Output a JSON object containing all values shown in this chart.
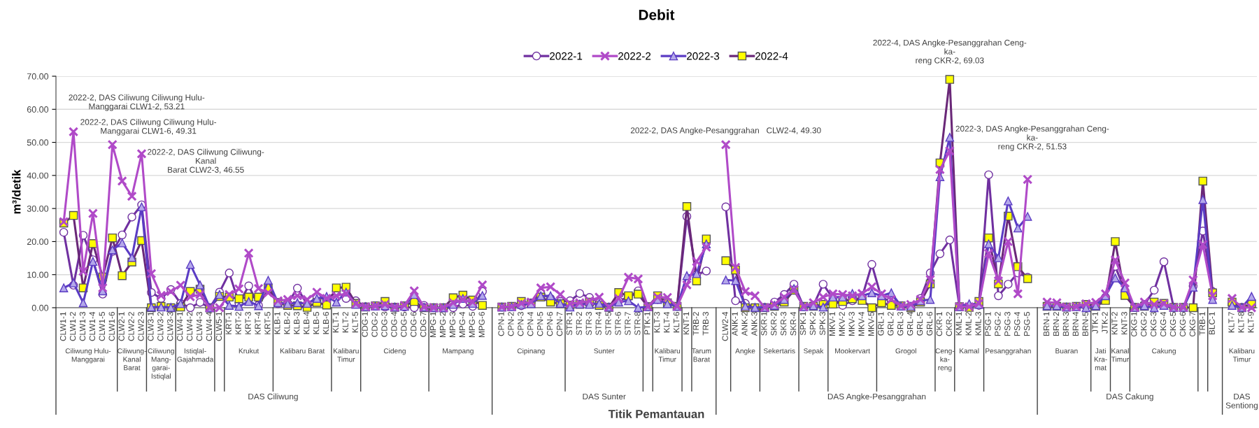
{
  "chart_data": {
    "type": "line",
    "title": "Debit",
    "ylabel": "m³/detik",
    "categories": [
      "CLW1-1",
      "CLW1-2",
      "CLW1-3",
      "CLW1-4",
      "CLW1-5",
      "CLW1-6",
      "CLW2-1",
      "CLW2-2",
      "CLW2-3",
      "CLW3-1",
      "CLW3-2",
      "CLW3-3",
      "CLW4-1",
      "CLW4-2",
      "CLW4-3",
      "CLW4-4",
      "CLW5-1",
      "KRT-1",
      "KRT-2",
      "KRT-3",
      "KRT-4",
      "KRT-5",
      "KLB-1",
      "KLB-2",
      "KLB-3",
      "KLB-4",
      "KLB-5",
      "KLB-6",
      "KLT-1",
      "KLT-2",
      "KLT-5",
      "CDG-1",
      "CDG-2",
      "CDG-3",
      "CDG-4",
      "CDG-5",
      "CDG-6",
      "CDG-7",
      "MPG-1",
      "MPG-2",
      "MPG-3",
      "MPG-4",
      "MPG-5",
      "MPG-6",
      null,
      "CPN-1",
      "CPN-2",
      "CPN-3",
      "CPN-4",
      "CPN-5",
      "CPN-6",
      "CPN-7",
      "STR-1",
      "STR-2",
      "STR-3",
      "STR-4",
      "STR-5",
      "STR-6",
      "STR-7",
      "STR-8",
      "PTK-1",
      "KLT-3",
      "KLT-4",
      "KLT-6",
      "KNT-1",
      "TRB-2",
      "TRB-3",
      null,
      "CLW2-4",
      "ANK-1",
      "ANK-2",
      "ANK-3",
      "SKR-1",
      "SKR-2",
      "SKR-3",
      "SKR-4",
      "SPK-1",
      "SPK-2",
      "SPK-3",
      "MKV-1",
      "MKV-2",
      "MKV-3",
      "MKV-4",
      "MKV-5",
      "GRL-1",
      "GRL-2",
      "GRL-3",
      "GRL-4",
      "GRL-5",
      "GRL-6",
      "CKR-1",
      "CKR-2",
      "KML-1",
      "KML-2",
      "KML-3",
      "PSG-1",
      "PSG-2",
      "PSG-3",
      "PSG-4",
      "PSG-5",
      null,
      "BRN-1",
      "BRN-2",
      "BRN-3",
      "BRN-4",
      "BRN-5",
      "JTK-1",
      "JTK-2",
      "KNT-2",
      "KNT-3",
      "CKG-1",
      "CKG-2",
      "CKG-3",
      "CKG-4",
      "CKG-5",
      "CKG-6",
      "CKG-7",
      "TRB-1",
      "BLC-1",
      null,
      "KLT-7",
      "KLT-8",
      "KLT-9"
    ],
    "series": [
      {
        "name": "2022-1",
        "color": "#7030a0",
        "marker": "circle",
        "values": [
          22.8,
          6.8,
          21.9,
          14.5,
          4.1,
          17.0,
          22.0,
          27.4,
          31.1,
          4.6,
          2.8,
          5.5,
          1.3,
          0.0,
          1.6,
          0.0,
          4.7,
          10.5,
          1.3,
          6.6,
          0.7,
          5.5,
          1.2,
          1.3,
          5.9,
          1.0,
          3.2,
          2.5,
          4.9,
          2.8,
          2.1,
          0.3,
          0.5,
          0.2,
          0.2,
          0.2,
          0.0,
          0.7,
          0.0,
          0.0,
          0.0,
          1.1,
          0.4,
          4.9,
          null,
          0.2,
          0.3,
          0.6,
          1.5,
          4.3,
          2.8,
          1.9,
          2.1,
          4.3,
          3.1,
          1.7,
          0.2,
          2.1,
          3.2,
          5.1,
          0.3,
          2.5,
          1.3,
          0.4,
          27.6,
          10.0,
          11.1,
          null,
          30.5,
          2.1,
          1.3,
          0.0,
          0.1,
          1.7,
          4.0,
          7.1,
          0.3,
          0.7,
          7.1,
          2.8,
          0.7,
          2.1,
          3.2,
          13.1,
          2.8,
          2.1,
          0.5,
          0.4,
          2.8,
          10.5,
          16.3,
          20.5,
          0.3,
          0.3,
          0.7,
          40.2,
          3.6,
          7.1,
          10.5,
          9.2,
          null,
          0.7,
          0.6,
          0.2,
          0.3,
          0.6,
          0.7,
          3.2,
          12.5,
          5.1,
          0.1,
          1.0,
          5.3,
          13.9,
          0.1,
          0.1,
          6.5,
          23.2,
          4.9,
          null,
          1.0,
          0.1,
          0.7
        ]
      },
      {
        "name": "2022-2",
        "color": "#b04ac8",
        "marker": "cross",
        "values": [
          26.0,
          53.21,
          11.0,
          28.5,
          6.0,
          49.31,
          38.3,
          33.7,
          46.55,
          10.3,
          3.7,
          4.9,
          6.8,
          3.3,
          4.0,
          0.0,
          0.0,
          4.0,
          5.7,
          16.5,
          5.8,
          4.5,
          2.1,
          2.5,
          3.6,
          2.5,
          4.7,
          2.8,
          3.6,
          4.3,
          1.2,
          0.3,
          0.5,
          1.0,
          0.2,
          0.7,
          5.1,
          0.2,
          0.0,
          0.0,
          1.5,
          2.5,
          1.7,
          6.9,
          null,
          0.2,
          0.3,
          1.3,
          1.7,
          6.0,
          6.3,
          4.0,
          1.3,
          1.5,
          2.1,
          3.2,
          0.2,
          2.8,
          9.2,
          8.7,
          0.3,
          3.2,
          3.1,
          0.4,
          6.9,
          14.0,
          18.3,
          null,
          49.3,
          12.2,
          4.9,
          3.6,
          0.1,
          1.0,
          3.2,
          5.5,
          0.3,
          1.5,
          3.2,
          4.2,
          4.0,
          3.6,
          4.3,
          6.3,
          4.2,
          2.5,
          0.5,
          1.0,
          2.5,
          8.5,
          41.8,
          47.4,
          0.3,
          0.3,
          1.3,
          16.4,
          8.1,
          20.0,
          4.2,
          38.8,
          null,
          1.7,
          1.5,
          0.2,
          0.3,
          1.2,
          1.6,
          4.2,
          14.4,
          7.5,
          0.1,
          1.7,
          1.0,
          1.2,
          0.1,
          0.1,
          8.4,
          19.1,
          3.6,
          null,
          2.8,
          0.1,
          0.0
        ]
      },
      {
        "name": "2022-3",
        "color": "#5b3cc4",
        "marker": "triangle",
        "values": [
          6.0,
          7.5,
          1.5,
          14.0,
          5.1,
          17.5,
          19.6,
          15.2,
          30.5,
          0.2,
          0.2,
          0.1,
          1.2,
          13.1,
          6.9,
          0.0,
          4.0,
          0.7,
          0.4,
          1.9,
          0.6,
          8.3,
          1.5,
          1.2,
          1.5,
          1.3,
          2.8,
          3.4,
          1.7,
          4.7,
          1.0,
          0.3,
          0.5,
          0.6,
          0.2,
          0.4,
          4.0,
          0.2,
          0.0,
          0.0,
          1.0,
          2.8,
          1.3,
          3.7,
          null,
          0.2,
          0.3,
          1.0,
          1.2,
          3.6,
          3.6,
          1.3,
          0.2,
          1.1,
          1.0,
          1.3,
          0.2,
          1.7,
          2.1,
          0.0,
          0.3,
          2.5,
          1.2,
          0.4,
          9.7,
          10.3,
          19.3,
          null,
          8.4,
          8.2,
          0.4,
          0.1,
          0.1,
          0.7,
          2.5,
          5.8,
          0.3,
          0.6,
          0.2,
          3.2,
          3.2,
          4.3,
          3.6,
          4.5,
          3.6,
          4.5,
          0.5,
          0.4,
          2.1,
          2.5,
          39.6,
          51.53,
          0.3,
          1.2,
          1.0,
          19.3,
          15.1,
          32.3,
          24.1,
          27.6,
          null,
          0.6,
          0.6,
          0.2,
          0.3,
          0.0,
          0.6,
          3.6,
          9.0,
          6.0,
          0.1,
          0.6,
          0.0,
          0.7,
          0.1,
          0.1,
          6.2,
          32.7,
          2.5,
          null,
          0.7,
          0.1,
          3.4
        ]
      },
      {
        "name": "2022-4",
        "color": "#6a2878",
        "marker": "square",
        "values": [
          25.6,
          27.9,
          6.0,
          19.4,
          9.3,
          21.1,
          9.7,
          13.8,
          20.3,
          0.0,
          0.4,
          0.0,
          0.2,
          4.9,
          5.6,
          0.0,
          3.4,
          3.2,
          2.7,
          3.2,
          3.2,
          6.0,
          1.6,
          0.7,
          0.6,
          0.1,
          1.6,
          0.8,
          6.0,
          6.2,
          1.3,
          0.2,
          0.6,
          1.9,
          0.1,
          0.6,
          1.9,
          0.0,
          0.0,
          0.0,
          3.0,
          3.8,
          2.3,
          0.7,
          null,
          0.2,
          0.4,
          1.9,
          1.3,
          3.2,
          1.7,
          1.2,
          0.8,
          1.0,
          1.7,
          0.7,
          0.1,
          4.6,
          3.6,
          4.1,
          0.3,
          3.6,
          1.5,
          0.4,
          30.6,
          8.1,
          20.8,
          null,
          14.2,
          11.4,
          0.0,
          0.0,
          0.0,
          0.4,
          1.7,
          5.3,
          0.4,
          0.4,
          1.0,
          1.1,
          1.9,
          2.7,
          2.2,
          0.0,
          1.5,
          0.7,
          0.6,
          0.0,
          1.7,
          7.2,
          43.8,
          69.03,
          0.3,
          0.1,
          1.9,
          21.1,
          7.2,
          27.7,
          12.4,
          8.8,
          null,
          0.4,
          0.4,
          0.2,
          0.4,
          1.0,
          0.4,
          2.2,
          20.0,
          3.7,
          0.1,
          0.4,
          1.7,
          1.3,
          0.1,
          0.1,
          0.0,
          38.3,
          4.5,
          null,
          1.7,
          0.0,
          1.2
        ]
      }
    ],
    "ylim": [
      0,
      70
    ],
    "yticks": [
      {
        "value": 0,
        "label": "0.00"
      },
      {
        "value": 10,
        "label": "10.00"
      },
      {
        "value": 20,
        "label": "20.00"
      },
      {
        "value": 30,
        "label": "30.00"
      },
      {
        "value": 40,
        "label": "40.00"
      },
      {
        "value": 50,
        "label": "50.00"
      },
      {
        "value": 60,
        "label": "60.00"
      },
      {
        "value": 70,
        "label": "70.00"
      }
    ],
    "grid": "y",
    "legend": "top",
    "line_style": "solid",
    "annotations": [
      {
        "text": "2022-2, DAS Ciliwung Ciliwung Hulu-\nManggarai CLW1-2, 53.21",
        "x": "CLW1-2",
        "y": 53.21
      },
      {
        "text": "2022-2, DAS Ciliwung Ciliwung Hulu-\nManggarai CLW1-6, 49.31",
        "x": "CLW1-6",
        "y": 49.31
      },
      {
        "text": "2022-2, DAS Ciliwung Ciliwung-\nKanal\nBarat CLW2-3, 46.55",
        "x": "CLW2-3",
        "y": 46.55
      },
      {
        "text": "2022-2, DAS Angke-Pesanggrahan   CLW2-4, 49.30",
        "x": "CLW2-4",
        "y": 49.3
      },
      {
        "text": "2022-4, DAS Angke-Pesanggrahan Ceng-\nka-\nreng CKR-2, 69.03",
        "x": "CKR-2",
        "y": 69.03
      },
      {
        "text": "2022-3, DAS Angke-Pesanggrahan Ceng-\nka-\nreng CKR-2, 51.53",
        "x": "CKR-2",
        "y": 51.53
      },
      "Ciliwung Hulu-\nManggarai",
      "Ciliwung-\nKanal\nBarat",
      "Ciliwung\nMang-\ngarai-\nIstiqlal",
      "Istiqlal-\nGajahmada",
      "Krukut",
      "Kalibaru Barat",
      "Kalibaru\nTimur",
      "Cideng",
      "Mampang",
      "Cipinang",
      "Sunter",
      "Kalibaru\nTimur",
      "Tarum\nBarat",
      "Angke",
      "Sekertaris",
      "Sepak",
      "Mookervart",
      "Grogol",
      "Ceng-\nka-\nreng",
      "Kamal",
      "Pesanggrahan",
      "Buaran",
      "Jati\nKra-\nmat",
      "Kanal\nTimur",
      "Cakung",
      "Kalibaru\nTimur",
      "DAS Ciliwung",
      "DAS Sunter",
      "DAS Angke-Pesanggrahan",
      "DAS Cakung",
      "DAS\nSentiong",
      "Titik Pemantauan"
    ]
  }
}
